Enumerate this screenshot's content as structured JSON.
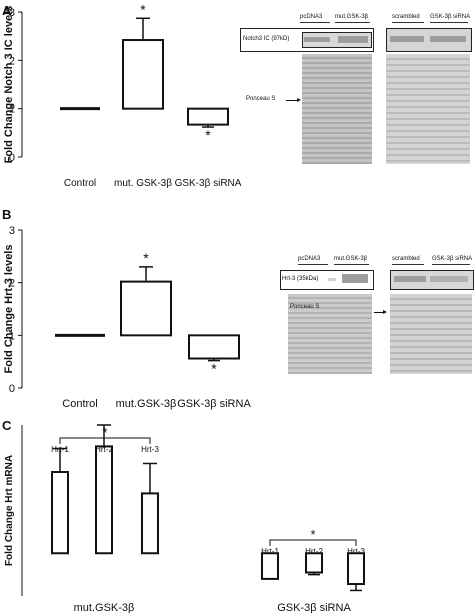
{
  "chart_data": [
    {
      "panel_label": "A",
      "type": "bar",
      "ylabel": "Fold Change Notch 3 IC levels",
      "ylim": [
        0,
        3
      ],
      "yticks": [
        0,
        1,
        2,
        3
      ],
      "categories": [
        "Control",
        "mut. GSK-3β",
        "GSK-3β siRNA"
      ],
      "values": [
        1.0,
        2.42,
        0.67
      ],
      "errors": [
        0,
        0.45,
        0.05
      ],
      "significance": [
        "",
        "*",
        "*"
      ],
      "baseline": 1
    },
    {
      "panel_label": "B",
      "type": "bar",
      "ylabel": "Fold Change Hrt-3 levels",
      "ylim": [
        0,
        3
      ],
      "yticks": [
        0,
        1,
        2,
        3
      ],
      "categories": [
        "Control",
        "mut.GSK-3β",
        "GSK-3β siRNA"
      ],
      "values": [
        1.0,
        2.02,
        0.56
      ],
      "errors": [
        0,
        0.28,
        0.04
      ],
      "significance": [
        "",
        "*",
        "*"
      ],
      "baseline": 1
    },
    {
      "panel_label": "C",
      "type": "bar",
      "ylabel": "Fold Change Hrt mRNA",
      "ylim": [
        0,
        4
      ],
      "categories": [
        "Hrt-1",
        "Hrt-2",
        "Hrt-3",
        "Hrt-1",
        "Hrt-2",
        "Hrt-3"
      ],
      "groups": [
        "mut.GSK-3β",
        "GSK-3β siRNA"
      ],
      "values": [
        2.9,
        3.5,
        2.4,
        0.4,
        0.55,
        0.28
      ],
      "errors": [
        0.55,
        0.5,
        0.7,
        0,
        0.05,
        0.15
      ],
      "significance_bracket": "*",
      "baseline": 1
    }
  ],
  "blots": {
    "A": {
      "lanes_left": [
        "pcDNA3",
        "mut.GSK-3β"
      ],
      "lanes_right": [
        "scrambled",
        "GSK-3β siRNA"
      ],
      "band_label": "Notch3 IC (97kD)",
      "loading_label": "Ponceau S"
    },
    "B": {
      "lanes_left": [
        "pcDNA3",
        "mut.GSK-3β"
      ],
      "lanes_right": [
        "scrambled",
        "GSK-3β siRNA"
      ],
      "band_label": "Hrt-3 (35kDa)",
      "loading_label": "Ponceau S"
    }
  }
}
